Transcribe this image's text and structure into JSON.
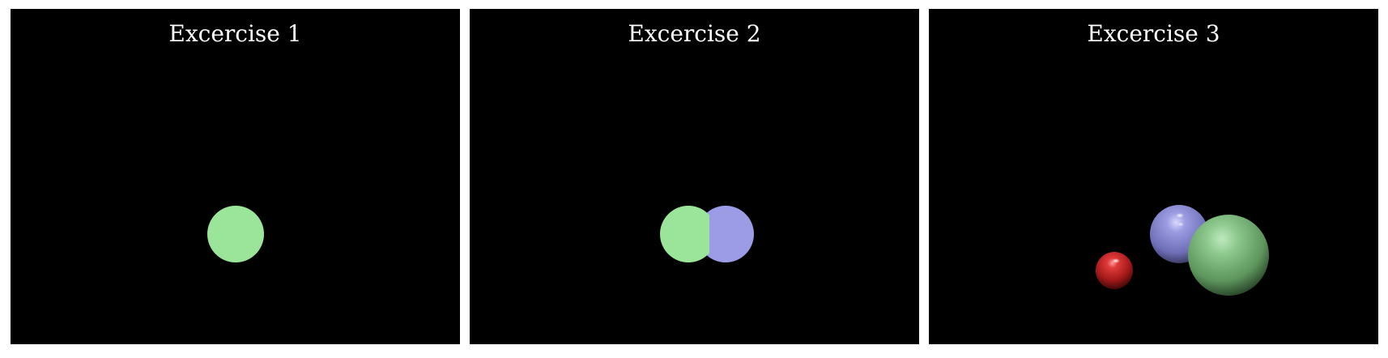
{
  "panels": [
    {
      "title": "Excercise 1",
      "spheres": [
        {
          "name": "green",
          "color": "#9be59b",
          "shading": "flat"
        }
      ]
    },
    {
      "title": "Excercise 2",
      "spheres": [
        {
          "name": "green",
          "color": "#9be59b",
          "shading": "flat"
        },
        {
          "name": "blue",
          "color": "#9b9be6",
          "shading": "flat"
        }
      ]
    },
    {
      "title": "Excercise 3",
      "spheres": [
        {
          "name": "red",
          "color": "#c42a2a",
          "shading": "shaded"
        },
        {
          "name": "blue",
          "color": "#8e8ed8",
          "shading": "shaded"
        },
        {
          "name": "green",
          "color": "#7dbf7d",
          "shading": "shaded"
        }
      ]
    }
  ]
}
